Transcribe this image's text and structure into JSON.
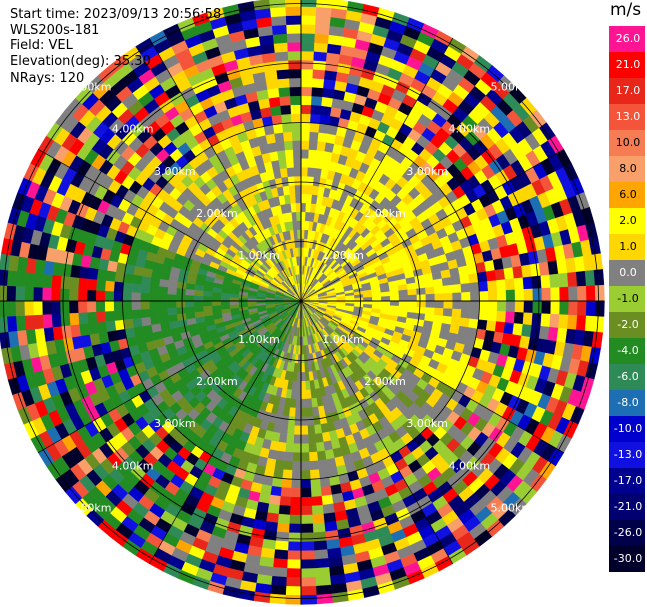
{
  "header": {
    "start_time": "Start time: 2023/09/13 20:56:58",
    "station": "WLS200s-181",
    "field": "Field: VEL",
    "elevation": "Elevation(deg): 35.30",
    "nrays": "NRays: 120"
  },
  "colorbar": {
    "unit": "m/s",
    "levels": [
      {
        "label": "26.0",
        "color": "#ff1493"
      },
      {
        "label": "21.0",
        "color": "#ff0000"
      },
      {
        "label": "17.0",
        "color": "#e8261a"
      },
      {
        "label": "13.0",
        "color": "#f4553a"
      },
      {
        "label": "10.0",
        "color": "#f67c54"
      },
      {
        "label": "8.0",
        "color": "#f9a06a"
      },
      {
        "label": "6.0",
        "color": "#ffa500"
      },
      {
        "label": "2.0",
        "color": "#ffff00"
      },
      {
        "label": "1.0",
        "color": "#ffd700"
      },
      {
        "label": "0.0",
        "color": "#808080"
      },
      {
        "label": "-1.0",
        "color": "#9acd32"
      },
      {
        "label": "-2.0",
        "color": "#6b8e23"
      },
      {
        "label": "-4.0",
        "color": "#228b22"
      },
      {
        "label": "-6.0",
        "color": "#2e8b57"
      },
      {
        "label": "-8.0",
        "color": "#1e6eb4"
      },
      {
        "label": "-10.0",
        "color": "#0000cd"
      },
      {
        "label": "-13.0",
        "color": "#1010e0"
      },
      {
        "label": "-17.0",
        "color": "#000090"
      },
      {
        "label": "-21.0",
        "color": "#000070"
      },
      {
        "label": "-26.0",
        "color": "#00004a"
      },
      {
        "label": "-30.0",
        "color": "#00002a"
      }
    ]
  },
  "chart_data": {
    "type": "heatmap",
    "projection": "polar PPI",
    "field": "VEL",
    "units": "m/s",
    "elevation_deg": 35.3,
    "n_rays": 120,
    "range_ring_labels": [
      "1.00km",
      "2.00km",
      "3.00km",
      "4.00km",
      "5.00km"
    ],
    "range_ring_km": [
      1,
      2,
      3,
      4,
      5
    ],
    "max_range_km": 5.1,
    "grid": true,
    "sectors": [
      {
        "azimuth_start_deg": 0,
        "azimuth_end_deg": 120,
        "dominant_velocity_m_s": 2.0,
        "description_range_km": [
          0,
          3
        ]
      },
      {
        "azimuth_start_deg": 120,
        "azimuth_end_deg": 200,
        "dominant_velocity_m_s": 0.0,
        "description_range_km": [
          0,
          3
        ]
      },
      {
        "azimuth_start_deg": 200,
        "azimuth_end_deg": 290,
        "dominant_velocity_m_s": -3.0,
        "description_range_km": [
          0,
          3
        ]
      },
      {
        "azimuth_start_deg": 290,
        "azimuth_end_deg": 360,
        "dominant_velocity_m_s": 1.0,
        "description_range_km": [
          0,
          3
        ]
      }
    ],
    "outer_noise_start_km": 3.0
  }
}
